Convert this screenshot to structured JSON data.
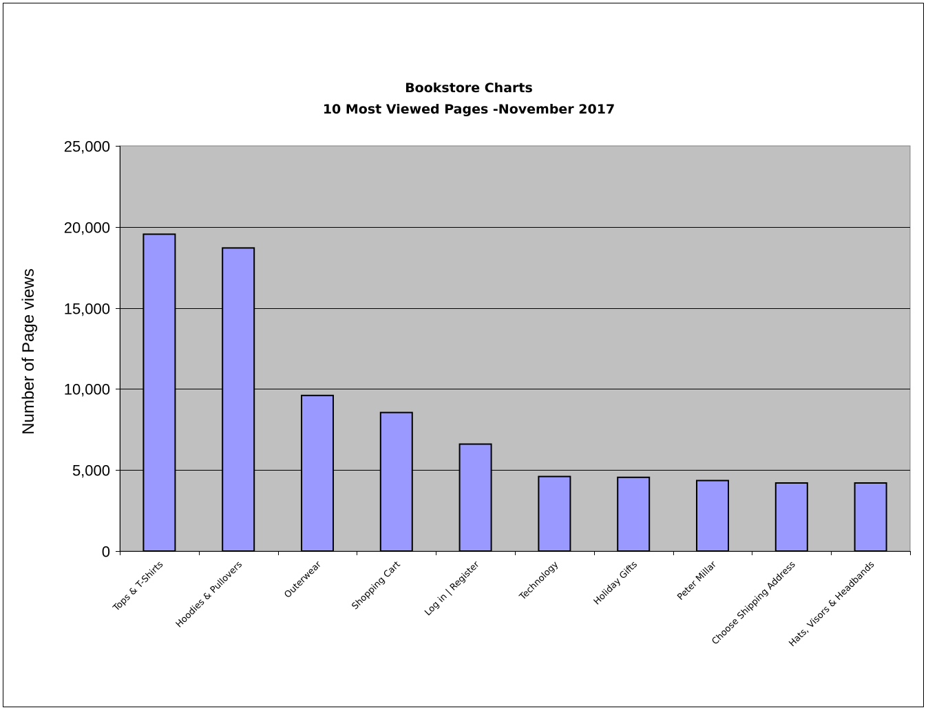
{
  "chart_data": {
    "type": "bar",
    "title": "Bookstore Charts",
    "subtitle": "10 Most Viewed Pages -November 2017",
    "xlabel": "",
    "ylabel": "Number of Page views",
    "categories": [
      "Tops & T-Shirts",
      "Hoodies & Pullovers",
      "Outerwear",
      "Shopping Cart",
      "Log in | Register",
      "Technology",
      "Holiday Gifts",
      "Peter Millar",
      "Choose Shipping Address",
      "Hats, Visors & Headbands"
    ],
    "values": [
      19550,
      18700,
      9600,
      8550,
      6600,
      4600,
      4550,
      4350,
      4200,
      4200
    ],
    "ylim": [
      0,
      25000
    ],
    "yticks": [
      0,
      5000,
      10000,
      15000,
      20000,
      25000
    ],
    "ytick_labels": [
      "0",
      "5,000",
      "10,000",
      "15,000",
      "20,000",
      "25,000"
    ],
    "grid": true,
    "legend": "none",
    "colors": {
      "bar_fill": "#9999ff",
      "bar_stroke": "#000000",
      "plot_background": "#c0c0c0",
      "gridline": "#000000",
      "plot_border": "#808080"
    }
  }
}
